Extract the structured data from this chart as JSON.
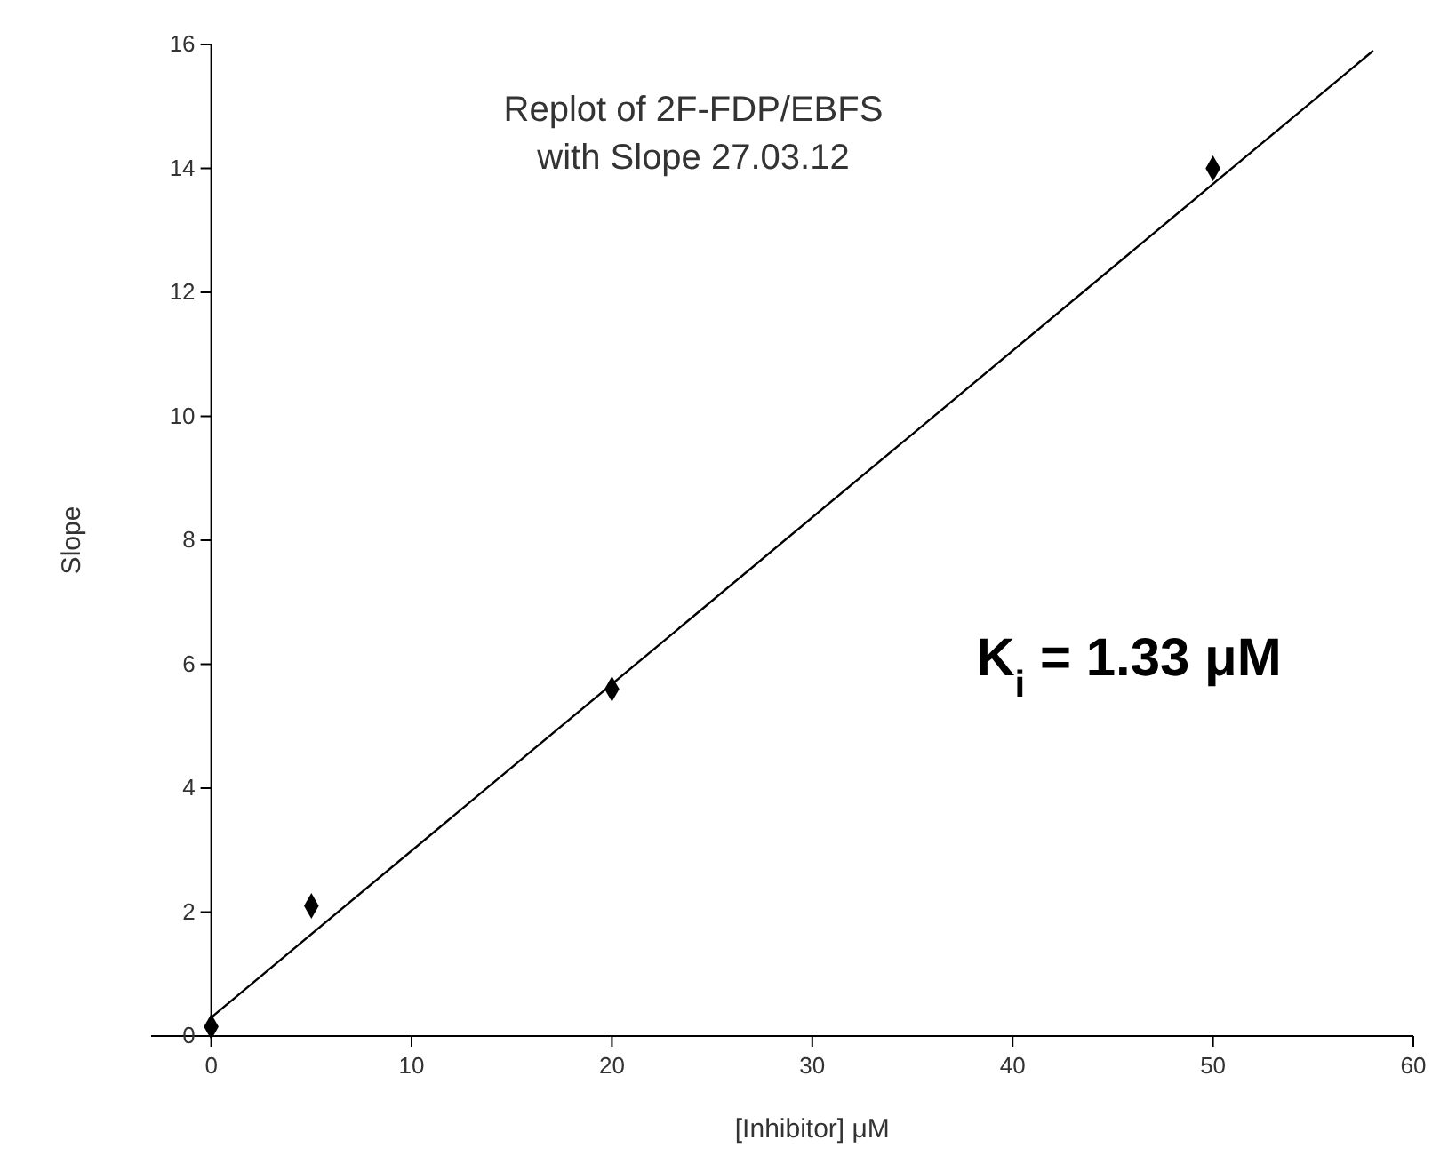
{
  "chart_data": {
    "type": "scatter",
    "title": "Replot of 2F-FDP/EBFS\nwith Slope 27.03.12",
    "xlabel": "[Inhibitor] μM",
    "ylabel": "Slope",
    "x": [
      0,
      5,
      20,
      50
    ],
    "series": [
      {
        "color": "#000000",
        "marker": "diamond",
        "values": [
          0.15,
          2.1,
          5.6,
          14.0
        ]
      },
      {
        "type": "line",
        "color": "#000000",
        "marker": "none",
        "line_style": "solid",
        "x": [
          0,
          58
        ],
        "values": [
          0.3,
          15.9
        ]
      }
    ],
    "xlim": [
      -3,
      60
    ],
    "xticks": [
      0,
      10,
      20,
      30,
      40,
      50,
      60
    ],
    "ylim": [
      0,
      16
    ],
    "yticks": [
      0,
      2,
      4,
      6,
      8,
      10,
      12,
      14,
      16
    ],
    "grid": false,
    "annotations": [
      "K$_{i}$ = 1.33 μM"
    ]
  }
}
